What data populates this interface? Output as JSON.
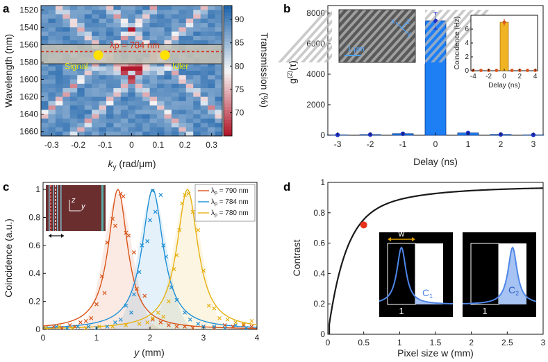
{
  "panels": {
    "a": "a",
    "b": "b",
    "c": "c",
    "d": "d"
  },
  "chart_data": [
    {
      "id": "a",
      "type": "heatmap",
      "xlabel_main": "k",
      "xlabel_sub": "y",
      "xlabel_unit": " (rad/μm)",
      "ylabel": "Wavelength (nm)",
      "colorbar_label": "Transmission (%)",
      "colorbar_ticks": [
        70,
        75,
        80,
        85,
        90
      ],
      "colorbar_range": [
        65,
        93
      ],
      "xlim": [
        -0.34,
        0.34
      ],
      "ylim": [
        1665,
        1515
      ],
      "xticks": [
        -0.3,
        -0.2,
        -0.1,
        0,
        0.1,
        0.2,
        0.3
      ],
      "xtick_labels": [
        "-0.3",
        "-0.2",
        "-0.1",
        "0",
        "0.1",
        "0.2",
        "0.3"
      ],
      "yticks": [
        1520,
        1540,
        1560,
        1580,
        1600,
        1620,
        1640,
        1660
      ],
      "ytick_labels": [
        "1520",
        "1540",
        "1560",
        "1580",
        "1600",
        "1620",
        "1640",
        "1660"
      ],
      "band_wavelengths": [
        1560,
        1582
      ],
      "pump_line_wavelength": 1568,
      "annotation_pump": "λp = 784 nm",
      "label_signal": "Signal",
      "label_idler": "Idler",
      "signal_point": {
        "k": -0.125,
        "wl": 1572
      },
      "idler_point": {
        "k": 0.125,
        "wl": 1572
      },
      "colors": {
        "low": "#b2182b",
        "mid": "#f7f7f7",
        "high": "#2166ac",
        "band": "#c8c3b4",
        "dash": "#d7301f",
        "marker": "#ffe100",
        "label": "#f2e600"
      }
    },
    {
      "id": "b",
      "type": "bar",
      "xlabel": "Delay (ns)",
      "ylabel": "g(2)(τ)",
      "ylabel_main": "g",
      "ylabel_sup": "(2)",
      "ylabel_arg": "(τ)",
      "categories": [
        "-3",
        "-2",
        "-1",
        "0",
        "1",
        "2",
        "3"
      ],
      "x": [
        -3,
        -2,
        -1,
        0,
        1,
        2,
        3
      ],
      "values": [
        20,
        40,
        100,
        7500,
        150,
        50,
        20
      ],
      "error": [
        0,
        0,
        0,
        550,
        0,
        0,
        0
      ],
      "ylim": [
        0,
        8500
      ],
      "yticks": [
        0,
        2000,
        4000,
        6000,
        8000
      ],
      "ytick_labels": [
        "0",
        "2000",
        "4000",
        "6000",
        "8000"
      ],
      "inset_sem": {
        "scale_label": "1 μm",
        "axis_x": "x",
        "axis_y": "y",
        "axis_z": "z"
      },
      "inset_chart": {
        "type": "bar",
        "xlabel": "Delay (ns)",
        "ylabel": "Coincidence (Hz)",
        "x": [
          -4,
          -3,
          -2,
          -1,
          0,
          1,
          2,
          3,
          4
        ],
        "values": [
          0.05,
          0.05,
          0.05,
          0.05,
          7.0,
          0.05,
          0.05,
          0.05,
          0.05
        ],
        "error": [
          0,
          0,
          0,
          0,
          0.5,
          0,
          0,
          0,
          0
        ],
        "ylim": [
          0,
          8
        ],
        "yticks": [
          0,
          2,
          4,
          6
        ],
        "ytick_labels": [
          "0",
          "2",
          "4",
          "6"
        ],
        "xticks": [
          -4,
          -2,
          0,
          2,
          4
        ],
        "xtick_labels": [
          "-4",
          "-2",
          "0",
          "2",
          "4"
        ]
      },
      "colors": {
        "bar": "#1e7ff5",
        "point": "#1a2fc8",
        "inset_bar": "#f0b323",
        "inset_point": "#d9541e"
      }
    },
    {
      "id": "c",
      "type": "scatter",
      "xlabel_main": "y",
      "xlabel_unit": " (mm)",
      "ylabel": "Coincidence (a.u.)",
      "xlim": [
        0,
        4
      ],
      "ylim": [
        0,
        1.05
      ],
      "xticks": [
        0,
        1,
        2,
        3,
        4
      ],
      "xtick_labels": [
        "0",
        "1",
        "2",
        "3",
        "4"
      ],
      "yticks": [
        0,
        0.2,
        0.4,
        0.6,
        0.8,
        1
      ],
      "ytick_labels": [
        "0",
        "0.2",
        "0.4",
        "0.6",
        "0.8",
        "1"
      ],
      "inset_axes": {
        "z": "z",
        "y": "y"
      },
      "series": [
        {
          "name": "λp = 790 nm",
          "legend_pre": "λ",
          "legend_sub": "p",
          "legend_post": " = 790 nm",
          "color": "#d95319",
          "center": 1.4,
          "width": 0.22,
          "points": [
            [
              0.05,
              0.01
            ],
            [
              0.2,
              0.02
            ],
            [
              0.35,
              0.01
            ],
            [
              0.5,
              0.03
            ],
            [
              0.6,
              0.02
            ],
            [
              0.7,
              0.05
            ],
            [
              0.8,
              0.06
            ],
            [
              0.9,
              0.08
            ],
            [
              1.0,
              0.18
            ],
            [
              1.1,
              0.38
            ],
            [
              1.15,
              0.26
            ],
            [
              1.2,
              0.62
            ],
            [
              1.3,
              0.79
            ],
            [
              1.35,
              0.74
            ],
            [
              1.45,
              0.97
            ],
            [
              1.5,
              0.95
            ],
            [
              1.55,
              0.69
            ],
            [
              1.6,
              0.67
            ],
            [
              1.7,
              0.55
            ],
            [
              1.75,
              0.29
            ],
            [
              1.9,
              0.24
            ],
            [
              2.05,
              0.07
            ],
            [
              2.2,
              0.05
            ],
            [
              2.35,
              0.03
            ],
            [
              2.5,
              0.02
            ],
            [
              2.65,
              0.02
            ],
            [
              2.8,
              0.01
            ],
            [
              3.0,
              0.02
            ],
            [
              3.2,
              0.01
            ],
            [
              3.4,
              0.03
            ],
            [
              3.55,
              0.02
            ],
            [
              3.75,
              0.03
            ],
            [
              3.9,
              0.02
            ]
          ]
        },
        {
          "name": "λp = 784 nm",
          "legend_pre": "λ",
          "legend_sub": "p",
          "legend_post": " = 784 nm",
          "color": "#1f8fd6",
          "center": 2.05,
          "width": 0.24,
          "points": [
            [
              0.05,
              0.01
            ],
            [
              0.25,
              0.02
            ],
            [
              0.45,
              0.01
            ],
            [
              0.65,
              0.02
            ],
            [
              0.85,
              0.02
            ],
            [
              1.0,
              0.01
            ],
            [
              1.2,
              0.02
            ],
            [
              1.35,
              0.05
            ],
            [
              1.45,
              0.07
            ],
            [
              1.55,
              0.17
            ],
            [
              1.65,
              0.12
            ],
            [
              1.7,
              0.25
            ],
            [
              1.8,
              0.41
            ],
            [
              1.85,
              0.6
            ],
            [
              1.95,
              0.63
            ],
            [
              2.0,
              0.78
            ],
            [
              2.05,
              0.99
            ],
            [
              2.1,
              0.84
            ],
            [
              2.2,
              0.96
            ],
            [
              2.25,
              0.6
            ],
            [
              2.3,
              0.52
            ],
            [
              2.4,
              0.3
            ],
            [
              2.5,
              0.21
            ],
            [
              2.65,
              0.12
            ],
            [
              2.75,
              0.07
            ],
            [
              2.9,
              0.04
            ],
            [
              3.0,
              0.02
            ],
            [
              3.2,
              0.02
            ],
            [
              3.4,
              0.01
            ],
            [
              3.6,
              0.03
            ],
            [
              3.8,
              0.01
            ]
          ]
        },
        {
          "name": "λp = 780 nm",
          "legend_pre": "λ",
          "legend_sub": "p",
          "legend_post": " = 780 nm",
          "color": "#e6b010",
          "center": 2.7,
          "width": 0.24,
          "points": [
            [
              0.05,
              0.01
            ],
            [
              0.3,
              0.02
            ],
            [
              0.55,
              0.01
            ],
            [
              0.8,
              0.01
            ],
            [
              1.05,
              0.02
            ],
            [
              1.3,
              0.02
            ],
            [
              1.55,
              0.03
            ],
            [
              1.8,
              0.04
            ],
            [
              1.95,
              0.05
            ],
            [
              2.05,
              0.08
            ],
            [
              2.15,
              0.12
            ],
            [
              2.25,
              0.09
            ],
            [
              2.35,
              0.2
            ],
            [
              2.45,
              0.43
            ],
            [
              2.5,
              0.53
            ],
            [
              2.55,
              0.71
            ],
            [
              2.6,
              0.9
            ],
            [
              2.65,
              0.96
            ],
            [
              2.72,
              0.97
            ],
            [
              2.8,
              0.84
            ],
            [
              2.9,
              0.71
            ],
            [
              3.0,
              0.42
            ],
            [
              3.1,
              0.17
            ],
            [
              3.2,
              0.15
            ],
            [
              3.3,
              0.08
            ],
            [
              3.45,
              0.07
            ],
            [
              3.6,
              0.05
            ],
            [
              3.75,
              0.04
            ],
            [
              3.9,
              0.06
            ]
          ]
        }
      ]
    },
    {
      "id": "d",
      "type": "line",
      "xlabel": "Pixel size w (mm)",
      "ylabel": "Contrast",
      "xlim": [
        0,
        3
      ],
      "ylim": [
        0,
        1
      ],
      "xticks": [
        0,
        0.5,
        1,
        1.5,
        2,
        2.5,
        3
      ],
      "xtick_labels": [
        "0",
        "0.5",
        "1",
        "1.5",
        "2",
        "2.5",
        "3"
      ],
      "yticks": [
        0,
        0.2,
        0.4,
        0.6,
        0.8,
        1
      ],
      "ytick_labels": [
        "0",
        "0.2",
        "0.4",
        "0.6",
        "0.8",
        "1"
      ],
      "highlight_point": {
        "x": 0.5,
        "y": 0.72
      },
      "inset_labels": {
        "w": "w",
        "pixel1": "1",
        "pixel2": "2",
        "c1": "C1",
        "c1_main": "C",
        "c1_sub": "1",
        "c2": "C2",
        "c2_main": "C",
        "c2_sub": "2"
      },
      "colors": {
        "line": "#1a1a1a",
        "point": "#e8341c",
        "peak": "#4f86e8",
        "arrow": "#e0a000"
      }
    }
  ]
}
